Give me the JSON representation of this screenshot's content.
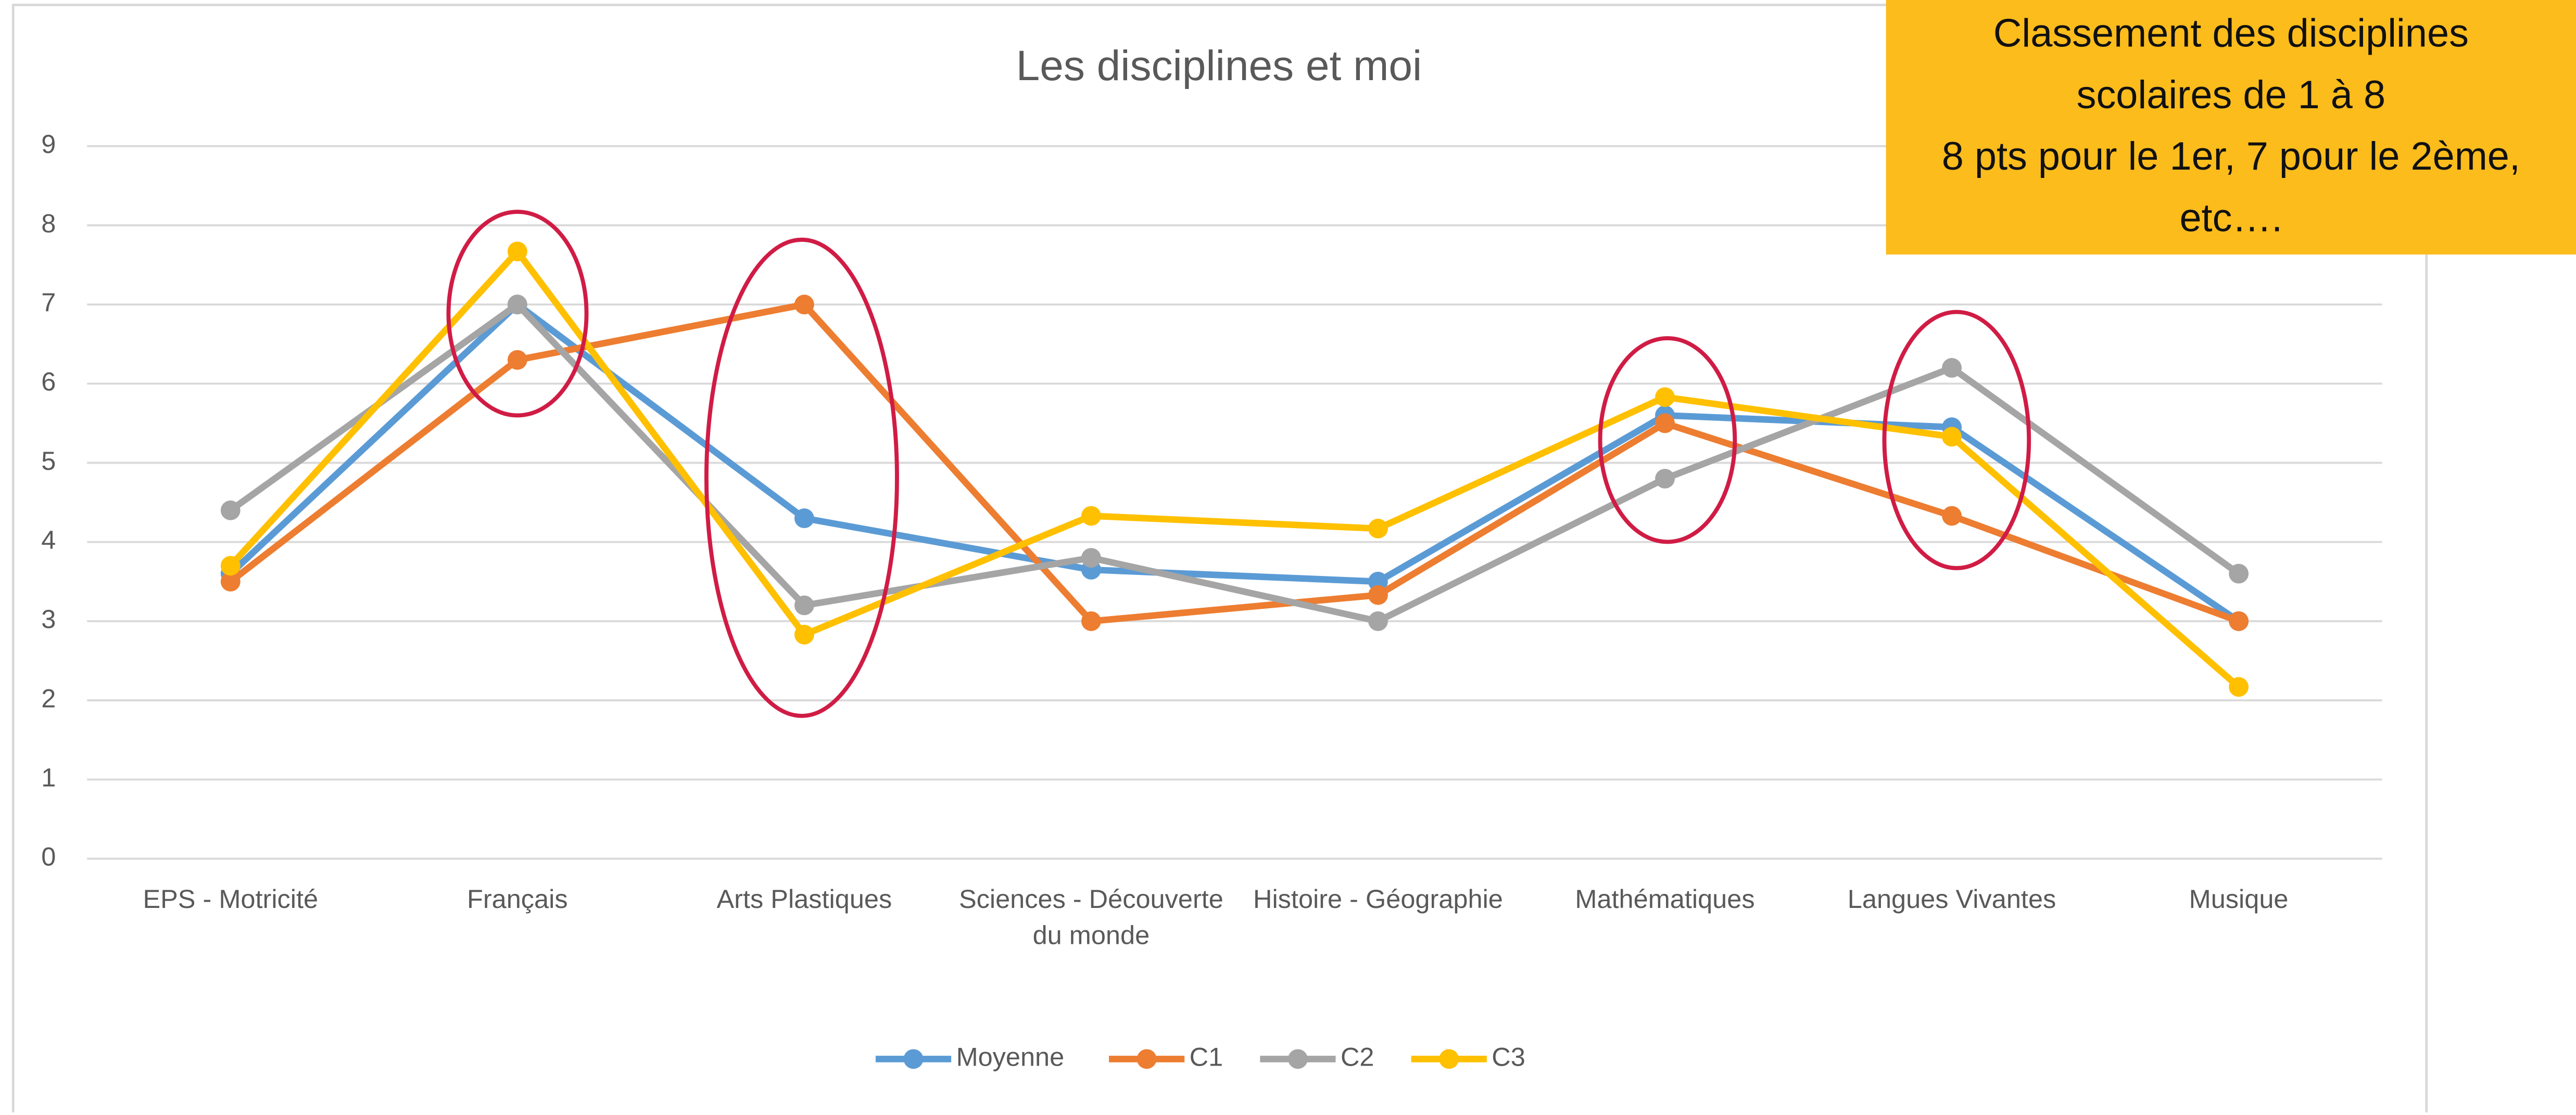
{
  "chart_data": {
    "type": "line",
    "title": "Les disciplines et moi",
    "categories": [
      "EPS - Motricité",
      "Français",
      "Arts Plastiques",
      "Sciences - Découverte du monde",
      "Histoire - Géographie",
      "Mathématiques",
      "Langues Vivantes",
      "Musique"
    ],
    "series": [
      {
        "name": "Moyenne",
        "color": "#5b9bd5",
        "values": [
          3.6,
          7.0,
          4.3,
          3.65,
          3.5,
          5.6,
          5.45,
          3.0
        ]
      },
      {
        "name": "C1",
        "color": "#ed7d31",
        "values": [
          3.5,
          6.3,
          7.0,
          3.0,
          3.33,
          5.5,
          4.33,
          3.0
        ]
      },
      {
        "name": "C2",
        "color": "#a5a5a5",
        "values": [
          4.4,
          7.0,
          3.2,
          3.8,
          3.0,
          4.8,
          6.2,
          3.6
        ]
      },
      {
        "name": "C3",
        "color": "#ffc000",
        "values": [
          3.7,
          7.67,
          2.83,
          4.33,
          4.17,
          5.83,
          5.33,
          2.17
        ]
      }
    ],
    "ylim": [
      0,
      9
    ],
    "yticks": [
      0,
      1,
      2,
      3,
      4,
      5,
      6,
      7,
      8,
      9
    ],
    "grid": true,
    "legend": "bottom",
    "annotation": {
      "lines": [
        "Classement des disciplines",
        "scolaires de 1 à 8",
        "8 pts pour le 1er, 7 pour le 2ème,",
        "etc…."
      ]
    }
  }
}
